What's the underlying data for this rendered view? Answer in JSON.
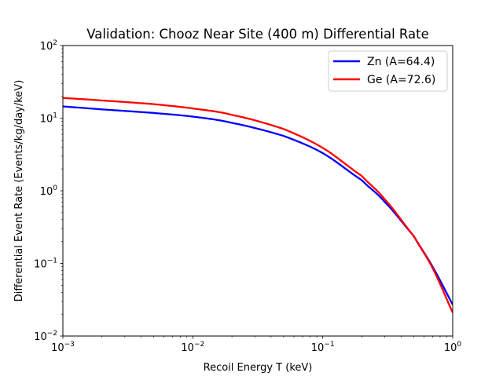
{
  "chart_data": {
    "type": "line",
    "title": "Validation: Chooz Near Site (400 m) Differential Rate",
    "xlabel": "Recoil Energy T (keV)",
    "ylabel": "Differential Event Rate (Events/kg/day/keV)",
    "xscale": "log",
    "yscale": "log",
    "xlim": [
      0.001,
      1
    ],
    "ylim": [
      0.01,
      100
    ],
    "grid": false,
    "legend_position": "top-right",
    "x_ticks": [
      {
        "value": 0.001,
        "base": "10",
        "exp": "−3"
      },
      {
        "value": 0.01,
        "base": "10",
        "exp": "−2"
      },
      {
        "value": 0.1,
        "base": "10",
        "exp": "−1"
      },
      {
        "value": 1,
        "base": "10",
        "exp": "0"
      }
    ],
    "y_ticks": [
      {
        "value": 0.01,
        "base": "10",
        "exp": "−2"
      },
      {
        "value": 0.1,
        "base": "10",
        "exp": "−1"
      },
      {
        "value": 1,
        "base": "10",
        "exp": "0"
      },
      {
        "value": 10,
        "base": "10",
        "exp": "1"
      },
      {
        "value": 100,
        "base": "10",
        "exp": "2"
      }
    ],
    "series": [
      {
        "name": "Zn (A=64.4)",
        "color": "#0000ff",
        "x": [
          0.001,
          0.002,
          0.005,
          0.01,
          0.02,
          0.05,
          0.1,
          0.2,
          0.3,
          0.5,
          0.7,
          1.0
        ],
        "y": [
          14.5,
          13.2,
          11.8,
          10.5,
          8.6,
          5.7,
          3.3,
          1.4,
          0.7,
          0.24,
          0.09,
          0.027
        ]
      },
      {
        "name": "Ge (A=72.6)",
        "color": "#ff0000",
        "x": [
          0.001,
          0.002,
          0.005,
          0.01,
          0.02,
          0.05,
          0.1,
          0.2,
          0.3,
          0.5,
          0.7,
          1.0
        ],
        "y": [
          19.0,
          17.5,
          15.6,
          13.6,
          11.1,
          7.1,
          3.9,
          1.6,
          0.76,
          0.24,
          0.086,
          0.021
        ]
      }
    ]
  }
}
